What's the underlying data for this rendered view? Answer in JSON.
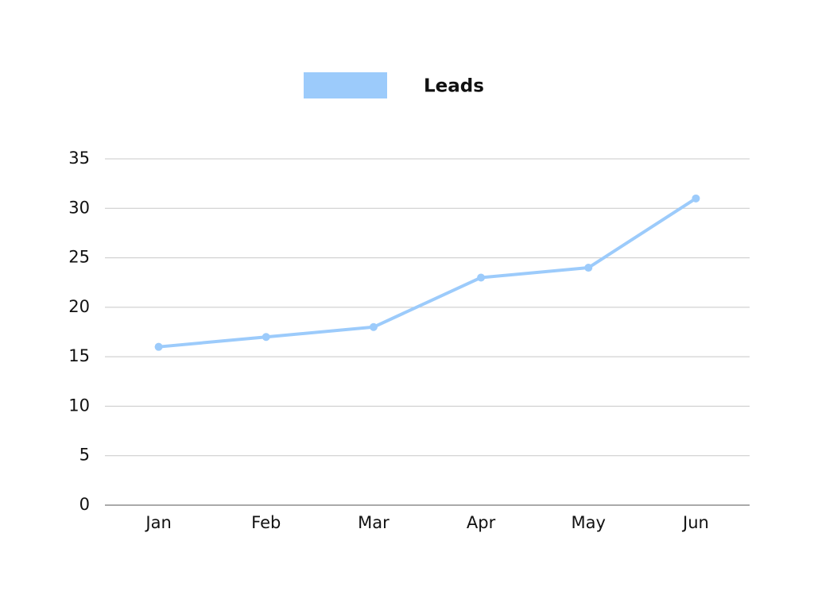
{
  "chart_data": {
    "type": "line",
    "categories": [
      "Jan",
      "Feb",
      "Mar",
      "Apr",
      "May",
      "Jun"
    ],
    "series": [
      {
        "name": "Leads",
        "color": "#9ccbfb",
        "values": [
          16,
          17,
          18,
          23,
          24,
          31
        ]
      }
    ],
    "ylim": [
      0,
      35
    ],
    "yticks": [
      0,
      5,
      10,
      15,
      20,
      25,
      30,
      35
    ],
    "grid": true,
    "legend": "top"
  }
}
